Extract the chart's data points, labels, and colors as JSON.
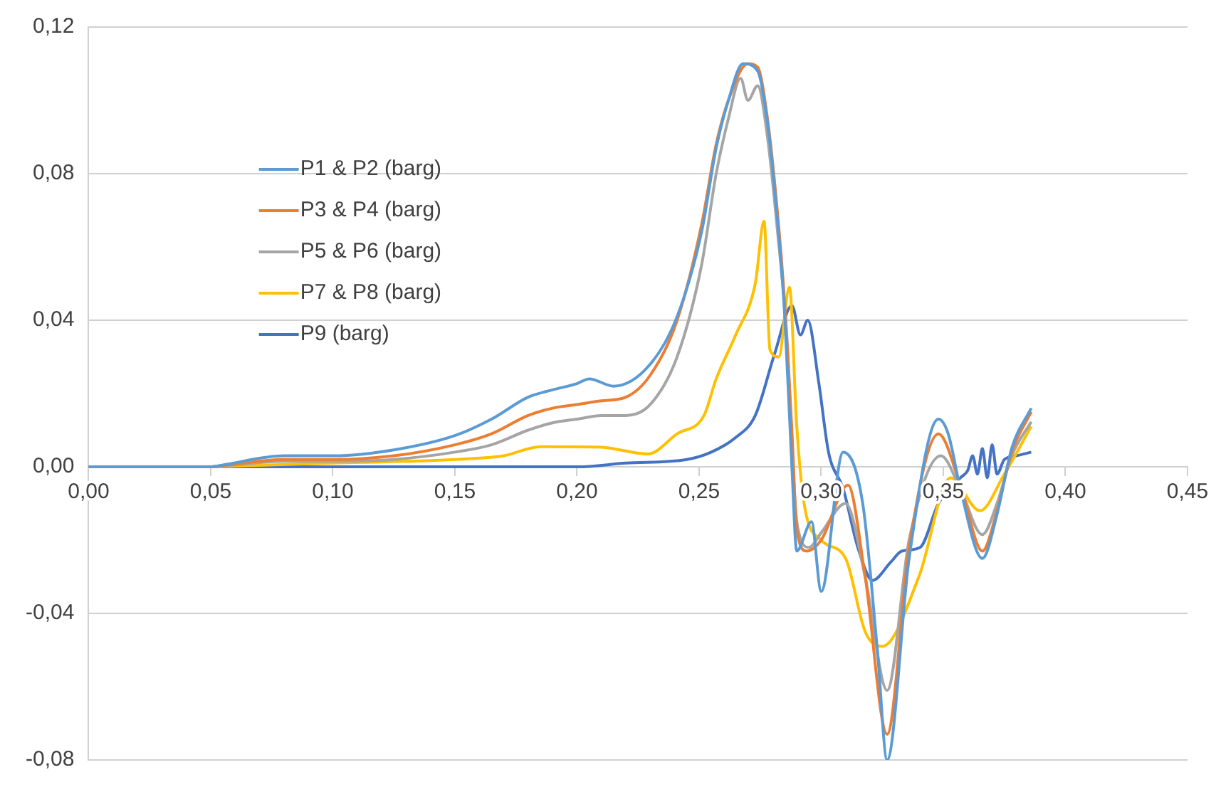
{
  "chart_data": {
    "type": "line",
    "xlim": [
      0,
      0.45
    ],
    "ylim": [
      -0.08,
      0.12
    ],
    "xticks": [
      {
        "value": 0,
        "label": "0,00"
      },
      {
        "value": 0.05,
        "label": "0,05"
      },
      {
        "value": 0.1,
        "label": "0,10"
      },
      {
        "value": 0.15,
        "label": "0,15"
      },
      {
        "value": 0.2,
        "label": "0,20"
      },
      {
        "value": 0.25,
        "label": "0,25"
      },
      {
        "value": 0.3,
        "label": "0,30"
      },
      {
        "value": 0.35,
        "label": "0,35"
      },
      {
        "value": 0.4,
        "label": "0,40"
      },
      {
        "value": 0.45,
        "label": "0,45"
      }
    ],
    "yticks": [
      {
        "value": -0.08,
        "label": "-0,08"
      },
      {
        "value": -0.04,
        "label": "-0,04"
      },
      {
        "value": 0,
        "label": "0,00"
      },
      {
        "value": 0.04,
        "label": "0,04"
      },
      {
        "value": 0.08,
        "label": "0,08"
      },
      {
        "value": 0.12,
        "label": "0,12"
      }
    ],
    "grid": "y",
    "legend": "top left",
    "marker": "none",
    "line_style": "solid",
    "series": [
      {
        "name": "P1 & P2 (barg)",
        "color": "#5b9bd5",
        "x": [
          0,
          0.05,
          0.055,
          0.08,
          0.1,
          0.125,
          0.15,
          0.165,
          0.18,
          0.19,
          0.2,
          0.205,
          0.215,
          0.23,
          0.241,
          0.251,
          0.257,
          0.262,
          0.268,
          0.274,
          0.278,
          0.282,
          0.285,
          0.288,
          0.29,
          0.296,
          0.3,
          0.309,
          0.317,
          0.323,
          0.327,
          0.336,
          0.348,
          0.352,
          0.357,
          0.366,
          0.372,
          0.378,
          0.386
        ],
        "values": [
          0,
          0,
          0.0005,
          0.003,
          0.003,
          0.0046,
          0.0085,
          0.013,
          0.019,
          0.021,
          0.0227,
          0.024,
          0.022,
          0.028,
          0.041,
          0.064,
          0.087,
          0.1,
          0.11,
          0.108,
          0.094,
          0.068,
          0.042,
          0,
          -0.023,
          -0.015,
          -0.034,
          0.004,
          -0.01,
          -0.05,
          -0.08,
          -0.025,
          0.013,
          0.009,
          -0.006,
          -0.025,
          -0.013,
          0.005,
          0.016
        ]
      },
      {
        "name": "P3 & P4 (barg)",
        "color": "#ed7d31",
        "x": [
          0,
          0.05,
          0.055,
          0.08,
          0.1,
          0.125,
          0.15,
          0.165,
          0.18,
          0.19,
          0.2,
          0.21,
          0.22,
          0.23,
          0.241,
          0.251,
          0.257,
          0.262,
          0.27,
          0.274,
          0.278,
          0.282,
          0.285,
          0.288,
          0.29,
          0.294,
          0.3,
          0.311,
          0.318,
          0.327,
          0.336,
          0.348,
          0.357,
          0.366,
          0.372,
          0.378,
          0.386
        ],
        "values": [
          0,
          0,
          0.0003,
          0.002,
          0.002,
          0.003,
          0.006,
          0.009,
          0.014,
          0.016,
          0.017,
          0.018,
          0.019,
          0.025,
          0.04,
          0.066,
          0.088,
          0.1,
          0.11,
          0.109,
          0.095,
          0.07,
          0.045,
          0.01,
          -0.017,
          -0.023,
          -0.02,
          -0.005,
          -0.03,
          -0.073,
          -0.022,
          0.009,
          -0.005,
          -0.023,
          -0.012,
          0.004,
          0.015
        ]
      },
      {
        "name": "P5 & P6 (barg)",
        "color": "#a5a5a5",
        "x": [
          0,
          0.05,
          0.055,
          0.08,
          0.1,
          0.125,
          0.15,
          0.165,
          0.18,
          0.19,
          0.2,
          0.21,
          0.22,
          0.23,
          0.241,
          0.251,
          0.257,
          0.262,
          0.267,
          0.27,
          0.274,
          0.278,
          0.282,
          0.286,
          0.29,
          0.295,
          0.3,
          0.31,
          0.318,
          0.327,
          0.336,
          0.349,
          0.357,
          0.366,
          0.372,
          0.378,
          0.386
        ],
        "values": [
          0,
          0,
          0.0002,
          0.0015,
          0.0015,
          0.002,
          0.004,
          0.006,
          0.01,
          0.012,
          0.013,
          0.014,
          0.014,
          0.017,
          0.03,
          0.055,
          0.08,
          0.095,
          0.106,
          0.1,
          0.104,
          0.09,
          0.065,
          0.035,
          -0.015,
          -0.022,
          -0.018,
          -0.01,
          -0.03,
          -0.061,
          -0.02,
          0.003,
          -0.006,
          -0.0185,
          -0.01,
          0.003,
          0.0123
        ]
      },
      {
        "name": "P7 & P8 (barg)",
        "color": "#ffc000",
        "x": [
          0,
          0.05,
          0.06,
          0.1,
          0.15,
          0.17,
          0.185,
          0.209,
          0.229,
          0.241,
          0.252,
          0.257,
          0.265,
          0.273,
          0.2766,
          0.279,
          0.2826,
          0.287,
          0.29,
          0.293,
          0.3,
          0.31,
          0.318,
          0.325,
          0.34,
          0.353,
          0.365,
          0.375,
          0.386
        ],
        "values": [
          0,
          0,
          0.0002,
          0.001,
          0.002,
          0.003,
          0.0055,
          0.0054,
          0.0035,
          0.009,
          0.014,
          0.024,
          0.036,
          0.05,
          0.067,
          0.032,
          0.03,
          0.049,
          0.011,
          -0.01,
          -0.02,
          -0.025,
          -0.045,
          -0.049,
          -0.03,
          -0.003,
          -0.012,
          -0.002,
          0.011
        ]
      },
      {
        "name": "P9 (barg)",
        "color": "#4472c4",
        "x": [
          0,
          0.1,
          0.2,
          0.22,
          0.245,
          0.255,
          0.265,
          0.273,
          0.281,
          0.288,
          0.2915,
          0.2945,
          0.299,
          0.303,
          0.309,
          0.315,
          0.321,
          0.3285,
          0.333,
          0.3405,
          0.348,
          0.357,
          0.36,
          0.362,
          0.364,
          0.366,
          0.368,
          0.37,
          0.372,
          0.375,
          0.38,
          0.386
        ],
        "values": [
          0,
          0,
          0,
          0.001,
          0.002,
          0.004,
          0.008,
          0.014,
          0.031,
          0.044,
          0.036,
          0.04,
          0.023,
          0.004,
          -0.006,
          -0.022,
          -0.031,
          -0.026,
          -0.023,
          -0.022,
          -0.01,
          -0.003,
          -0.001,
          0.003,
          -0.002,
          0.005,
          -0.003,
          0.006,
          -0.002,
          0.002,
          0.003,
          0.004
        ]
      }
    ]
  }
}
